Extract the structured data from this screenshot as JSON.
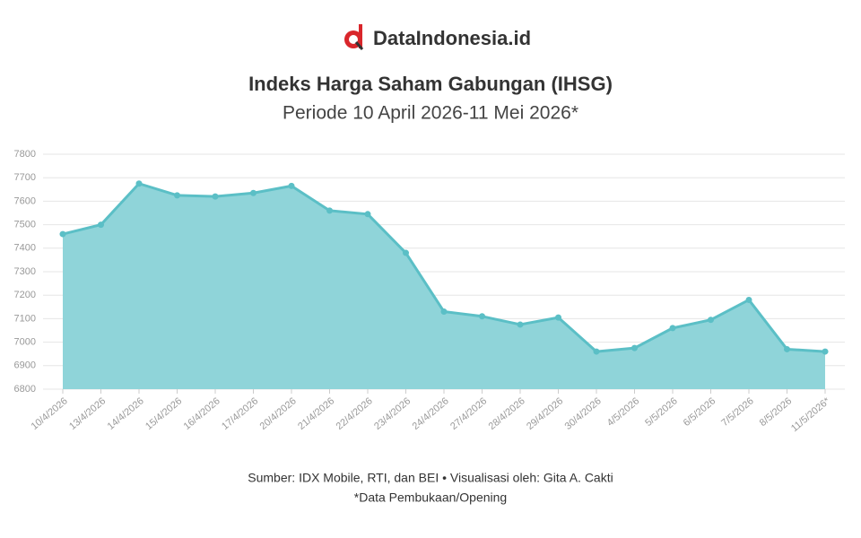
{
  "brand": "DataIndonesia.id",
  "chart_data": {
    "type": "area",
    "title": "Indeks Harga Saham Gabungan (IHSG)",
    "subtitle": "Periode 10 April 2026-11 Mei 2026*",
    "categories": [
      "10/4/2026",
      "13/4/2026",
      "14/4/2026",
      "15/4/2026",
      "16/4/2026",
      "17/4/2026",
      "20/4/2026",
      "21/4/2026",
      "22/4/2026",
      "23/4/2026",
      "24/4/2026",
      "27/4/2026",
      "28/4/2026",
      "29/4/2026",
      "30/4/2026",
      "4/5/2026",
      "5/5/2026",
      "6/5/2026",
      "7/5/2026",
      "8/5/2026",
      "11/5/2026*"
    ],
    "values": [
      7460,
      7500,
      7675,
      7625,
      7620,
      7635,
      7665,
      7560,
      7545,
      7380,
      7130,
      7110,
      7075,
      7105,
      6960,
      6975,
      7060,
      7095,
      7180,
      6970,
      6960
    ],
    "color": "#5bbfc6",
    "fill": "#8fd4d9",
    "ylim": [
      6800,
      7800
    ],
    "yticks": [
      6800,
      6900,
      7000,
      7100,
      7200,
      7300,
      7400,
      7500,
      7600,
      7700,
      7800
    ],
    "grid": true
  },
  "footer": {
    "source": "Sumber: IDX Mobile, RTI, dan BEI • Visualisasi oleh: Gita A. Cakti",
    "note": "*Data Pembukaan/Opening"
  }
}
